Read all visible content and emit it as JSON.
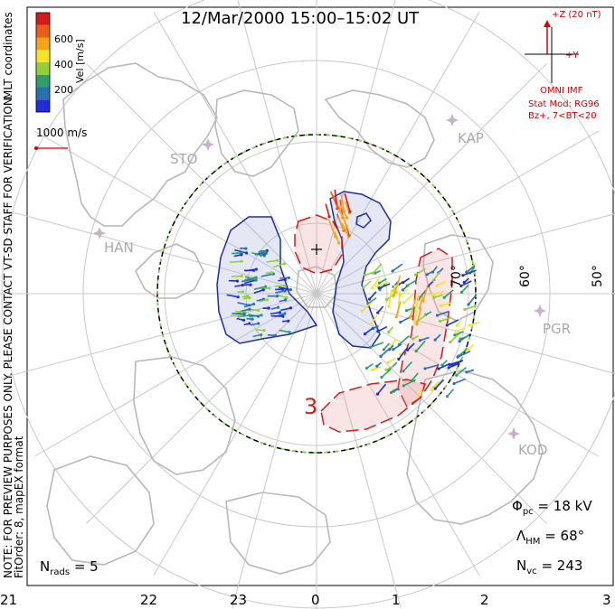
{
  "title": "12/Mar/2000 15:00–15:02 UT",
  "colorbar": {
    "label": "Vel [m/s]",
    "ticks": [
      "600",
      "400",
      "200"
    ],
    "colors": [
      "#1f2fd8",
      "#2a6fb0",
      "#2f9e6a",
      "#8fd13a",
      "#f5e52a",
      "#f5a41a",
      "#ee5a17",
      "#d41a1a"
    ]
  },
  "side_text": {
    "mlt": "MLT coordinates",
    "note": "NOTE: FOR PREVIEW PURPOSES ONLY. PLEASE CONTACT VT-SD STAFF FOR VERIFICATION.",
    "fit": "FitOrder: 8, mapEX format"
  },
  "scale_vector": "1000 m/s",
  "imf": {
    "z_label": "+Z (20 nT)",
    "y_label": "+Y",
    "source": "OMNI IMF",
    "model": "Stat Mod: RG96",
    "cond": "Bz+, 7<BT<20"
  },
  "stations": [
    "STO",
    "HAN",
    "KAP",
    "PGR",
    "KOD"
  ],
  "lat_labels": [
    "70°",
    "60°",
    "50°"
  ],
  "potential_label": "3",
  "stats": {
    "phi_sym": "Φ",
    "phi_sub": "pc",
    "phi_val": "= 18 kV",
    "lam_sym": "Λ",
    "lam_sub": "HM",
    "lam_val": "= 68°",
    "nvc_sym": "N",
    "nvc_sub": "vc",
    "nvc_val": "= 243",
    "nrads_sym": "N",
    "nrads_sub": "rads",
    "nrads_val": "= 5"
  },
  "mlt_axis": [
    "21",
    "22",
    "23",
    "0",
    "1",
    "2",
    "3"
  ],
  "colors": {
    "positive": "#c81e1e",
    "negative": "#1e2ea0",
    "hmb": "#7fd84a",
    "coast": "#b8b8b8",
    "grid": "#c8c8c8"
  }
}
